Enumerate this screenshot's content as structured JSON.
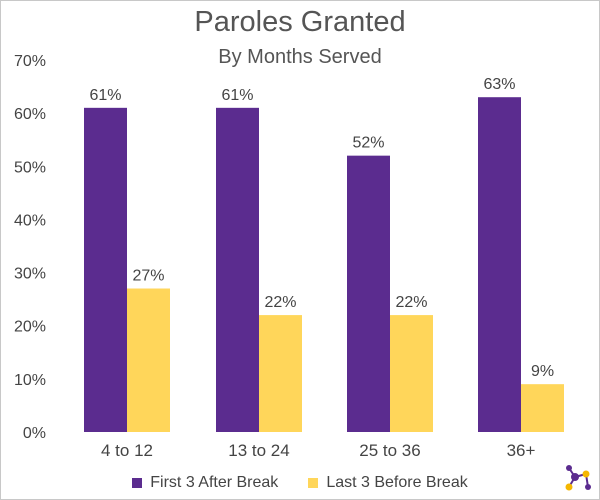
{
  "chart_data": {
    "type": "bar",
    "title": "Paroles Granted",
    "subtitle": "By Months Served",
    "categories": [
      "4 to 12",
      "13 to 24",
      "25 to 36",
      "36+"
    ],
    "series": [
      {
        "name": "First 3 After Break",
        "values": [
          61,
          61,
          52,
          63
        ],
        "labels": [
          "61%",
          "61%",
          "52%",
          "63%"
        ],
        "color": "#5b2c8f"
      },
      {
        "name": "Last 3 Before Break",
        "values": [
          27,
          22,
          22,
          9
        ],
        "labels": [
          "27%",
          "22%",
          "22%",
          "9%"
        ],
        "color": "#ffd65a"
      }
    ],
    "yticks": [
      "0%",
      "10%",
      "20%",
      "30%",
      "40%",
      "50%",
      "60%",
      "70%"
    ],
    "ylim": [
      0,
      70
    ],
    "grid": false,
    "legend_position": "bottom"
  },
  "colors": {
    "logo_purple": "#5b2c8f",
    "logo_yellow": "#f5b700",
    "text": "#444444"
  },
  "logo_icon": "network-dots-icon"
}
